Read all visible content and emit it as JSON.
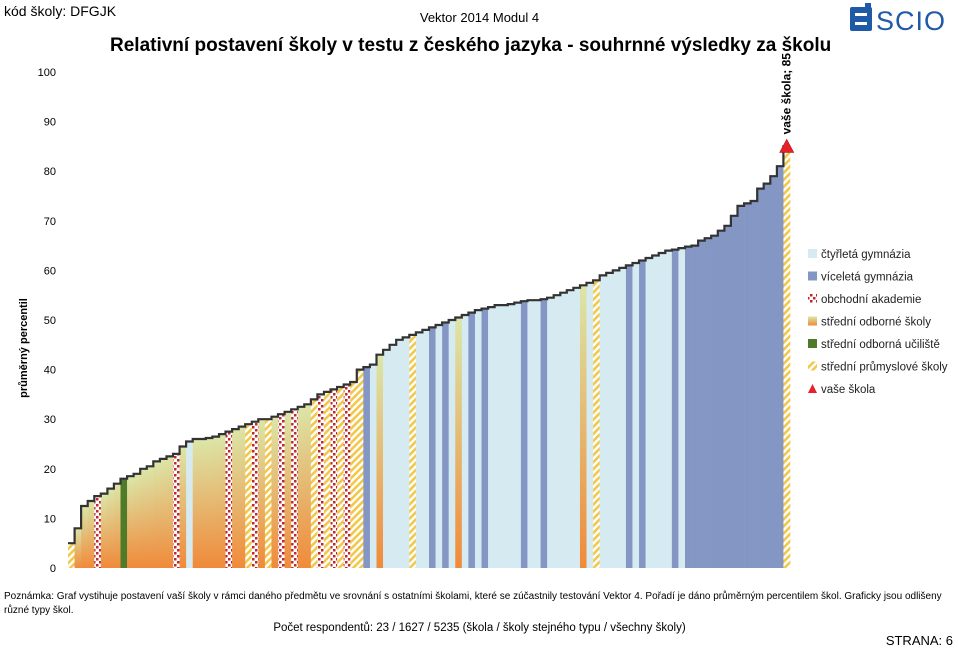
{
  "header": {
    "school_code": "kód školy: DFGJK",
    "module": "Vektor 2014 Modul 4",
    "logo_text": "SCIO"
  },
  "chart_data": {
    "type": "bar",
    "title": "Relativní postavení školy v testu z českého jazyka - souhrnné výsledky za školu",
    "ylabel": "průměrný percentil",
    "ylim": [
      0,
      100
    ],
    "yticks": [
      0,
      10,
      20,
      30,
      40,
      50,
      60,
      70,
      80,
      90,
      100
    ],
    "grid": false,
    "legend_position": "right",
    "series": [
      {
        "name": "čtyřletá gymnázia",
        "key": "g4",
        "color": "#d6ebf1"
      },
      {
        "name": "víceletá gymnázia",
        "key": "gv",
        "color": "#8497c4"
      },
      {
        "name": "obchodní akademie",
        "key": "oa",
        "color": "#c0272d"
      },
      {
        "name": "střední odborné školy",
        "key": "sos",
        "color": "#f08a3a"
      },
      {
        "name": "střední odborná učiliště",
        "key": "sou",
        "color": "#4f7a28"
      },
      {
        "name": "střední průmyslové školy",
        "key": "sps",
        "color": "#f2c84a"
      },
      {
        "name": "vaše škola",
        "key": "own",
        "color": "#e8202a"
      }
    ],
    "bars": [
      {
        "v": 5,
        "t": "sps"
      },
      {
        "v": 8,
        "t": "sos"
      },
      {
        "v": 12.5,
        "t": "sos"
      },
      {
        "v": 13.5,
        "t": "sos"
      },
      {
        "v": 14.5,
        "t": "oa"
      },
      {
        "v": 15,
        "t": "sos"
      },
      {
        "v": 16,
        "t": "sos"
      },
      {
        "v": 17,
        "t": "sos"
      },
      {
        "v": 18,
        "t": "sou"
      },
      {
        "v": 18.5,
        "t": "sos"
      },
      {
        "v": 19,
        "t": "sos"
      },
      {
        "v": 20,
        "t": "sos"
      },
      {
        "v": 20.5,
        "t": "sos"
      },
      {
        "v": 21.5,
        "t": "sos"
      },
      {
        "v": 22,
        "t": "sos"
      },
      {
        "v": 22.5,
        "t": "sos"
      },
      {
        "v": 23,
        "t": "oa"
      },
      {
        "v": 24.5,
        "t": "sos"
      },
      {
        "v": 25.5,
        "t": "g4"
      },
      {
        "v": 26,
        "t": "sos"
      },
      {
        "v": 26,
        "t": "sos"
      },
      {
        "v": 26.2,
        "t": "sos"
      },
      {
        "v": 26.5,
        "t": "sos"
      },
      {
        "v": 27,
        "t": "sos"
      },
      {
        "v": 27.5,
        "t": "oa"
      },
      {
        "v": 28,
        "t": "sos"
      },
      {
        "v": 28.5,
        "t": "sos"
      },
      {
        "v": 29,
        "t": "sps"
      },
      {
        "v": 29.5,
        "t": "oa"
      },
      {
        "v": 30,
        "t": "sos"
      },
      {
        "v": 30,
        "t": "sps"
      },
      {
        "v": 30.5,
        "t": "sos"
      },
      {
        "v": 31,
        "t": "oa"
      },
      {
        "v": 31.5,
        "t": "sos"
      },
      {
        "v": 32,
        "t": "oa"
      },
      {
        "v": 32.5,
        "t": "sos"
      },
      {
        "v": 33,
        "t": "sos"
      },
      {
        "v": 34,
        "t": "sps"
      },
      {
        "v": 35,
        "t": "oa"
      },
      {
        "v": 35.5,
        "t": "sps"
      },
      {
        "v": 36,
        "t": "oa"
      },
      {
        "v": 36.5,
        "t": "sps"
      },
      {
        "v": 37,
        "t": "oa"
      },
      {
        "v": 37.5,
        "t": "sps"
      },
      {
        "v": 40,
        "t": "sps"
      },
      {
        "v": 40.5,
        "t": "gv"
      },
      {
        "v": 41,
        "t": "g4"
      },
      {
        "v": 43,
        "t": "sos"
      },
      {
        "v": 44,
        "t": "g4"
      },
      {
        "v": 45,
        "t": "g4"
      },
      {
        "v": 46,
        "t": "g4"
      },
      {
        "v": 46.5,
        "t": "g4"
      },
      {
        "v": 47,
        "t": "sps"
      },
      {
        "v": 47.5,
        "t": "g4"
      },
      {
        "v": 48,
        "t": "g4"
      },
      {
        "v": 48.5,
        "t": "gv"
      },
      {
        "v": 49,
        "t": "g4"
      },
      {
        "v": 49.5,
        "t": "gv"
      },
      {
        "v": 50,
        "t": "g4"
      },
      {
        "v": 50.5,
        "t": "sos"
      },
      {
        "v": 51,
        "t": "g4"
      },
      {
        "v": 51.5,
        "t": "gv"
      },
      {
        "v": 52,
        "t": "g4"
      },
      {
        "v": 52.3,
        "t": "gv"
      },
      {
        "v": 52.6,
        "t": "g4"
      },
      {
        "v": 53,
        "t": "g4"
      },
      {
        "v": 53,
        "t": "g4"
      },
      {
        "v": 53.2,
        "t": "g4"
      },
      {
        "v": 53.5,
        "t": "g4"
      },
      {
        "v": 53.8,
        "t": "gv"
      },
      {
        "v": 54,
        "t": "g4"
      },
      {
        "v": 54,
        "t": "g4"
      },
      {
        "v": 54.2,
        "t": "gv"
      },
      {
        "v": 54.5,
        "t": "g4"
      },
      {
        "v": 55,
        "t": "g4"
      },
      {
        "v": 55.5,
        "t": "g4"
      },
      {
        "v": 56,
        "t": "g4"
      },
      {
        "v": 56.5,
        "t": "g4"
      },
      {
        "v": 57,
        "t": "sos"
      },
      {
        "v": 57.5,
        "t": "g4"
      },
      {
        "v": 58,
        "t": "sps"
      },
      {
        "v": 59,
        "t": "g4"
      },
      {
        "v": 59.5,
        "t": "g4"
      },
      {
        "v": 60,
        "t": "g4"
      },
      {
        "v": 60.5,
        "t": "g4"
      },
      {
        "v": 61,
        "t": "gv"
      },
      {
        "v": 61.5,
        "t": "g4"
      },
      {
        "v": 62,
        "t": "gv"
      },
      {
        "v": 62.5,
        "t": "g4"
      },
      {
        "v": 63,
        "t": "g4"
      },
      {
        "v": 63.5,
        "t": "g4"
      },
      {
        "v": 64,
        "t": "g4"
      },
      {
        "v": 64.2,
        "t": "gv"
      },
      {
        "v": 64.5,
        "t": "g4"
      },
      {
        "v": 64.8,
        "t": "gv"
      },
      {
        "v": 65,
        "t": "gv"
      },
      {
        "v": 66,
        "t": "gv"
      },
      {
        "v": 66.5,
        "t": "gv"
      },
      {
        "v": 67,
        "t": "gv"
      },
      {
        "v": 68,
        "t": "gv"
      },
      {
        "v": 69,
        "t": "gv"
      },
      {
        "v": 71,
        "t": "gv"
      },
      {
        "v": 73,
        "t": "gv"
      },
      {
        "v": 73.5,
        "t": "gv"
      },
      {
        "v": 74,
        "t": "gv"
      },
      {
        "v": 76.5,
        "t": "gv"
      },
      {
        "v": 77.5,
        "t": "gv"
      },
      {
        "v": 79,
        "t": "gv"
      },
      {
        "v": 81,
        "t": "gv"
      },
      {
        "v": 85,
        "t": "sps"
      }
    ],
    "own_school": {
      "label": "vaše škola; 85",
      "value": 85
    }
  },
  "note": "Poznámka: Graf vystihuje postavení vaší školy v rámci daného předmětu ve srovnání s ostatními školami, které se zúčastnily testování Vektor 4. Pořadí je dáno průměrným percentilem škol. Graficky jsou odlišeny různé typy škol.",
  "footer": {
    "respondents": "Počet respondentů: 23 / 1627 / 5235 (škola / školy stejného typu / všechny školy)",
    "page": "STRANA: 6"
  }
}
